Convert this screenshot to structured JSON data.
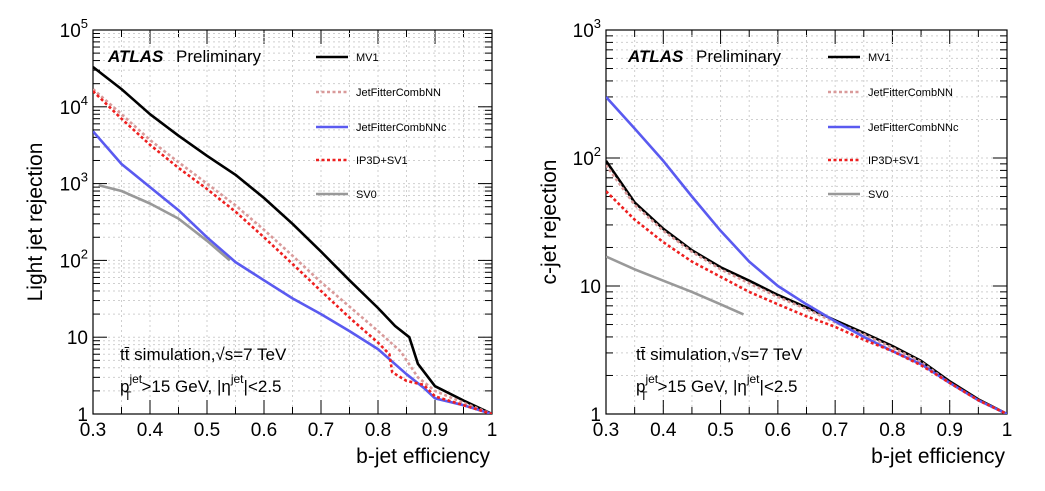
{
  "chart_data": [
    {
      "type": "line",
      "xlabel": "b-jet efficiency",
      "ylabel": "Light jet rejection",
      "xlim": [
        0.3,
        1.0
      ],
      "ylim": [
        1,
        100000
      ],
      "yscale": "log",
      "grid": true,
      "legend_position": "top-right",
      "atlas_label": "ATLAS",
      "preliminary_label": "Preliminary",
      "note_sim": "tt̄ simulation,√s=7 TeV",
      "note_cut_pt": "p",
      "note_cut_rest": ">15 GeV, |η",
      "note_cut_eta_limit": "|<2.5",
      "sup_jet": "jet",
      "sub_T": "T",
      "x_ticks": [
        "0.3",
        "0.4",
        "0.5",
        "0.6",
        "0.7",
        "0.8",
        "0.9",
        "1"
      ],
      "y_ticks": [
        {
          "value": 1,
          "base": "1",
          "exp": ""
        },
        {
          "value": 10,
          "base": "10",
          "exp": ""
        },
        {
          "value": 100,
          "base": "10",
          "exp": "2"
        },
        {
          "value": 1000,
          "base": "10",
          "exp": "3"
        },
        {
          "value": 10000,
          "base": "10",
          "exp": "4"
        },
        {
          "value": 100000,
          "base": "10",
          "exp": "5"
        }
      ],
      "series": [
        {
          "name": "MV1",
          "color": "#000000",
          "style": "solid",
          "x": [
            0.3,
            0.35,
            0.4,
            0.45,
            0.5,
            0.55,
            0.6,
            0.65,
            0.7,
            0.75,
            0.8,
            0.83,
            0.855,
            0.87,
            0.9,
            0.95,
            1.0
          ],
          "y": [
            33000,
            17000,
            8000,
            4200,
            2300,
            1300,
            650,
            300,
            130,
            55,
            24,
            14,
            10,
            4.5,
            2.3,
            1.5,
            1.0
          ]
        },
        {
          "name": "JetFitterCombNN",
          "color": "#d99a9a",
          "style": "dotted",
          "x": [
            0.3,
            0.35,
            0.4,
            0.45,
            0.5,
            0.55,
            0.6,
            0.65,
            0.7,
            0.75,
            0.8,
            0.84,
            0.87,
            0.9,
            0.95,
            1.0
          ],
          "y": [
            17000,
            8000,
            3700,
            1900,
            1000,
            520,
            250,
            115,
            52,
            25,
            12,
            6.5,
            3.0,
            2.0,
            1.4,
            1.0
          ]
        },
        {
          "name": "JetFitterCombNNc",
          "color": "#5a5af0",
          "style": "solid",
          "x": [
            0.3,
            0.35,
            0.4,
            0.45,
            0.5,
            0.55,
            0.6,
            0.65,
            0.7,
            0.75,
            0.8,
            0.85,
            0.88,
            0.9,
            0.95,
            1.0
          ],
          "y": [
            4800,
            1800,
            900,
            450,
            200,
            95,
            55,
            32,
            20,
            12,
            7.0,
            3.3,
            2.2,
            1.6,
            1.3,
            1.0
          ]
        },
        {
          "name": "IP3D+SV1",
          "color": "#ee2020",
          "style": "dotted",
          "x": [
            0.3,
            0.35,
            0.4,
            0.45,
            0.5,
            0.55,
            0.6,
            0.65,
            0.7,
            0.75,
            0.8,
            0.82,
            0.825,
            0.85,
            0.88,
            0.9,
            0.95,
            1.0
          ],
          "y": [
            16000,
            7000,
            3200,
            1600,
            850,
            430,
            200,
            90,
            40,
            18,
            8.5,
            6.0,
            3.5,
            2.7,
            2.4,
            1.7,
            1.3,
            1.0
          ]
        },
        {
          "name": "SV0",
          "color": "#999999",
          "style": "solid",
          "x": [
            0.31,
            0.35,
            0.4,
            0.45,
            0.5,
            0.54
          ],
          "y": [
            950,
            800,
            550,
            350,
            180,
            100
          ]
        }
      ]
    },
    {
      "type": "line",
      "xlabel": "b-jet efficiency",
      "ylabel": "c-jet rejection",
      "xlim": [
        0.3,
        1.0
      ],
      "ylim": [
        1,
        1000
      ],
      "yscale": "log",
      "grid": true,
      "legend_position": "top-right",
      "atlas_label": "ATLAS",
      "preliminary_label": "Preliminary",
      "note_sim": "tt̄ simulation,√s=7 TeV",
      "note_cut_pt": "p",
      "note_cut_rest": ">15 GeV, |η",
      "note_cut_eta_limit": "|<2.5",
      "sup_jet": "jet",
      "sub_T": "T",
      "x_ticks": [
        "0.3",
        "0.4",
        "0.5",
        "0.6",
        "0.7",
        "0.8",
        "0.9",
        "1"
      ],
      "y_ticks": [
        {
          "value": 1,
          "base": "1",
          "exp": ""
        },
        {
          "value": 10,
          "base": "10",
          "exp": ""
        },
        {
          "value": 100,
          "base": "10",
          "exp": "2"
        },
        {
          "value": 1000,
          "base": "10",
          "exp": "3"
        }
      ],
      "series": [
        {
          "name": "MV1",
          "color": "#000000",
          "style": "solid",
          "x": [
            0.3,
            0.35,
            0.4,
            0.45,
            0.5,
            0.55,
            0.6,
            0.65,
            0.7,
            0.75,
            0.8,
            0.85,
            0.9,
            0.95,
            1.0
          ],
          "y": [
            95,
            45,
            28,
            19,
            14,
            11,
            8.5,
            6.8,
            5.4,
            4.3,
            3.4,
            2.6,
            1.8,
            1.3,
            1.0
          ]
        },
        {
          "name": "JetFitterCombNN",
          "color": "#d99a9a",
          "style": "dotted",
          "x": [
            0.3,
            0.35,
            0.4,
            0.45,
            0.5,
            0.55,
            0.6,
            0.65,
            0.7,
            0.75,
            0.8,
            0.85,
            0.9,
            0.95,
            1.0
          ],
          "y": [
            88,
            43,
            27,
            18.5,
            13.5,
            10.5,
            8.2,
            6.6,
            5.2,
            4.2,
            3.3,
            2.55,
            1.75,
            1.28,
            1.0
          ]
        },
        {
          "name": "JetFitterCombNNc",
          "color": "#5a5af0",
          "style": "solid",
          "x": [
            0.3,
            0.35,
            0.4,
            0.45,
            0.5,
            0.55,
            0.6,
            0.65,
            0.7,
            0.75,
            0.8,
            0.85,
            0.9,
            0.95,
            1.0
          ],
          "y": [
            300,
            170,
            95,
            50,
            27,
            15.5,
            10,
            7.2,
            5.3,
            4.0,
            3.1,
            2.45,
            1.75,
            1.28,
            1.0
          ]
        },
        {
          "name": "IP3D+SV1",
          "color": "#ee2020",
          "style": "dotted",
          "x": [
            0.3,
            0.35,
            0.4,
            0.45,
            0.5,
            0.55,
            0.6,
            0.65,
            0.7,
            0.75,
            0.8,
            0.85,
            0.9,
            0.95,
            1.0
          ],
          "y": [
            55,
            33,
            22,
            15.5,
            11.8,
            9.0,
            7.2,
            5.8,
            4.8,
            3.8,
            3.1,
            2.4,
            1.75,
            1.28,
            1.0
          ]
        },
        {
          "name": "SV0",
          "color": "#999999",
          "style": "solid",
          "x": [
            0.3,
            0.35,
            0.4,
            0.45,
            0.5,
            0.54
          ],
          "y": [
            17,
            13.5,
            11,
            9.0,
            7.2,
            6.0
          ]
        }
      ]
    }
  ]
}
